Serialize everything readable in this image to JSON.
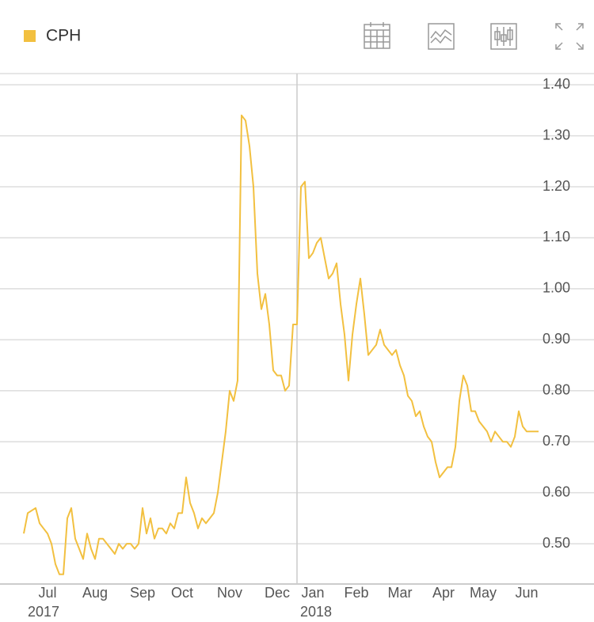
{
  "chart_data": {
    "type": "line",
    "series": [
      {
        "name": "CPH",
        "color": "#f2c040",
        "values": [
          0.52,
          0.56,
          0.565,
          0.57,
          0.54,
          0.53,
          0.52,
          0.5,
          0.46,
          0.44,
          0.44,
          0.55,
          0.57,
          0.51,
          0.49,
          0.47,
          0.52,
          0.49,
          0.47,
          0.51,
          0.51,
          0.5,
          0.49,
          0.48,
          0.5,
          0.49,
          0.5,
          0.5,
          0.49,
          0.5,
          0.57,
          0.52,
          0.55,
          0.51,
          0.53,
          0.53,
          0.52,
          0.54,
          0.53,
          0.56,
          0.56,
          0.63,
          0.58,
          0.56,
          0.53,
          0.55,
          0.54,
          0.55,
          0.56,
          0.6,
          0.66,
          0.72,
          0.8,
          0.78,
          0.82,
          1.34,
          1.33,
          1.28,
          1.2,
          1.03,
          0.96,
          0.99,
          0.93,
          0.84,
          0.83,
          0.83,
          0.8,
          0.81,
          0.93,
          0.93,
          1.2,
          1.21,
          1.06,
          1.07,
          1.09,
          1.1,
          1.06,
          1.02,
          1.03,
          1.05,
          0.97,
          0.91,
          0.82,
          0.91,
          0.97,
          1.02,
          0.95,
          0.87,
          0.88,
          0.89,
          0.92,
          0.89,
          0.88,
          0.87,
          0.88,
          0.85,
          0.83,
          0.79,
          0.78,
          0.75,
          0.76,
          0.73,
          0.71,
          0.7,
          0.66,
          0.63,
          0.64,
          0.65,
          0.65,
          0.69,
          0.78,
          0.83,
          0.81,
          0.76,
          0.76,
          0.74,
          0.73,
          0.72,
          0.7,
          0.72,
          0.71,
          0.7,
          0.7,
          0.69,
          0.71,
          0.76,
          0.73,
          0.72,
          0.72,
          0.72,
          0.72
        ]
      }
    ],
    "xlim": [
      -6,
      144
    ],
    "xticks": [
      {
        "value": 6,
        "label": "Jul"
      },
      {
        "value": 18,
        "label": "Aug"
      },
      {
        "value": 30,
        "label": "Sep"
      },
      {
        "value": 40,
        "label": "Oct"
      },
      {
        "value": 52,
        "label": "Nov"
      },
      {
        "value": 64,
        "label": "Dec"
      },
      {
        "value": 73,
        "label": "Jan"
      },
      {
        "value": 84,
        "label": "Feb"
      },
      {
        "value": 95,
        "label": "Mar"
      },
      {
        "value": 106,
        "label": "Apr"
      },
      {
        "value": 116,
        "label": "May"
      },
      {
        "value": 127,
        "label": "Jun"
      }
    ],
    "year_labels": [
      {
        "value": 1,
        "label": "2017"
      },
      {
        "value": 69,
        "label": "2018"
      }
    ],
    "ylim": [
      0.421,
      1.422
    ],
    "yticks": [
      {
        "value": 0.5,
        "label": "0.50"
      },
      {
        "value": 0.6,
        "label": "0.60"
      },
      {
        "value": 0.7,
        "label": "0.70"
      },
      {
        "value": 0.8,
        "label": "0.80"
      },
      {
        "value": 0.9,
        "label": "0.90"
      },
      {
        "value": 1.0,
        "label": "1.00"
      },
      {
        "value": 1.1,
        "label": "1.10"
      },
      {
        "value": 1.2,
        "label": "1.20"
      },
      {
        "value": 1.3,
        "label": "1.30"
      },
      {
        "value": 1.4,
        "label": "1.40"
      }
    ],
    "grid": true
  }
}
